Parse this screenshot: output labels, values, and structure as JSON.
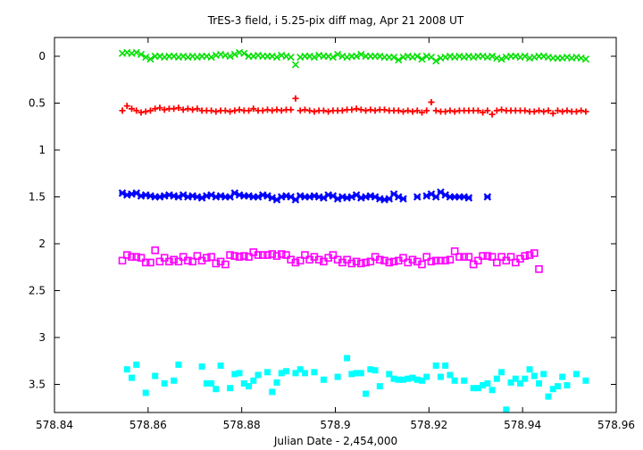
{
  "chart_data": {
    "type": "scatter",
    "title": "TrES-3 field, i 5.25-pix diff mag, Apr 21 2008 UT",
    "xlabel": "Julian Date - 2,454,000",
    "ylabel": "",
    "xlim": [
      578.84,
      578.96
    ],
    "ylim": [
      3.8,
      -0.2
    ],
    "y_reversed": true,
    "x_ticks": [
      "578.84",
      "578.86",
      "578.88",
      "578.9",
      "578.92",
      "578.94",
      "578.96"
    ],
    "y_ticks": [
      "0",
      "0.5",
      "1",
      "1.5",
      "2",
      "2.5",
      "3",
      "3.5"
    ],
    "grid": false,
    "series": [
      {
        "marker": "x",
        "color": "#00e000",
        "x": [
          578.8545,
          578.8555,
          578.8565,
          578.8575,
          578.8585,
          578.8595,
          578.8605,
          578.8615,
          578.8625,
          578.8635,
          578.8645,
          578.8655,
          578.8665,
          578.8675,
          578.8685,
          578.8695,
          578.8705,
          578.8715,
          578.8725,
          578.8735,
          578.8745,
          578.8755,
          578.8765,
          578.8775,
          578.8785,
          578.8795,
          578.8805,
          578.8815,
          578.8825,
          578.8835,
          578.8845,
          578.8855,
          578.8865,
          578.8875,
          578.8885,
          578.8895,
          578.8905,
          578.8915,
          578.8925,
          578.8935,
          578.8945,
          578.8955,
          578.8965,
          578.8975,
          578.8985,
          578.8995,
          578.9005,
          578.9015,
          578.9025,
          578.9035,
          578.9045,
          578.9055,
          578.9065,
          578.9075,
          578.9085,
          578.9095,
          578.9105,
          578.9115,
          578.9125,
          578.9135,
          578.9145,
          578.9155,
          578.9165,
          578.9175,
          578.9185,
          578.9195,
          578.9205,
          578.9215,
          578.9225,
          578.9235,
          578.9245,
          578.9255,
          578.9265,
          578.9275,
          578.9285,
          578.9295,
          578.9305,
          578.9315,
          578.9325,
          578.9335,
          578.9345,
          578.9355,
          578.9365,
          578.9375,
          578.9385,
          578.9395,
          578.9405,
          578.9415,
          578.9425,
          578.9435,
          578.9445,
          578.9455,
          578.9465,
          578.9475,
          578.9485,
          578.9495,
          578.9505,
          578.9515,
          578.9525,
          578.9535
        ],
        "y": [
          -0.03,
          -0.04,
          -0.03,
          -0.04,
          -0.02,
          0.01,
          0.03,
          0.0,
          0.0,
          0.01,
          0.0,
          0.0,
          0.01,
          0.0,
          0.01,
          0.0,
          0.01,
          0.0,
          0.0,
          0.01,
          -0.01,
          -0.02,
          -0.01,
          0.0,
          -0.02,
          -0.04,
          -0.03,
          0.0,
          0.0,
          -0.01,
          0.0,
          0.0,
          0.0,
          0.01,
          -0.01,
          0.0,
          0.01,
          0.09,
          0.01,
          0.0,
          0.0,
          0.01,
          -0.01,
          0.0,
          0.0,
          0.01,
          -0.02,
          0.0,
          0.01,
          0.0,
          0.0,
          -0.02,
          0.0,
          0.0,
          0.0,
          0.0,
          0.01,
          0.01,
          0.01,
          0.04,
          0.01,
          0.0,
          0.01,
          0.0,
          0.03,
          0.0,
          0.01,
          0.05,
          0.02,
          0.01,
          0.0,
          0.01,
          0.0,
          0.01,
          0.0,
          0.01,
          0.0,
          0.0,
          0.01,
          0.0,
          0.02,
          0.03,
          0.01,
          0.0,
          0.0,
          0.01,
          0.0,
          0.02,
          0.01,
          0.0,
          0.0,
          0.01,
          0.02,
          0.02,
          0.02,
          0.01,
          0.02,
          0.01,
          0.02,
          0.03
        ]
      },
      {
        "marker": "+",
        "color": "#ff0000",
        "x": [
          578.8545,
          578.8555,
          578.8565,
          578.8575,
          578.8585,
          578.8595,
          578.8605,
          578.8615,
          578.8625,
          578.8635,
          578.8645,
          578.8655,
          578.8665,
          578.8675,
          578.8685,
          578.8695,
          578.8705,
          578.8715,
          578.8725,
          578.8735,
          578.8745,
          578.8755,
          578.8765,
          578.8775,
          578.8785,
          578.8795,
          578.8805,
          578.8815,
          578.8825,
          578.8835,
          578.8845,
          578.8855,
          578.8865,
          578.8875,
          578.8885,
          578.8895,
          578.8905,
          578.8915,
          578.8925,
          578.8935,
          578.8945,
          578.8955,
          578.8965,
          578.8975,
          578.8985,
          578.8995,
          578.9005,
          578.9015,
          578.9025,
          578.9035,
          578.9045,
          578.9055,
          578.9065,
          578.9075,
          578.9085,
          578.9095,
          578.9105,
          578.9115,
          578.9125,
          578.9135,
          578.9145,
          578.9155,
          578.9165,
          578.9175,
          578.9185,
          578.9195,
          578.9205,
          578.9215,
          578.9225,
          578.9235,
          578.9245,
          578.9255,
          578.9265,
          578.9275,
          578.9285,
          578.9295,
          578.9305,
          578.9315,
          578.9325,
          578.9335,
          578.9345,
          578.9355,
          578.9365,
          578.9375,
          578.9385,
          578.9395,
          578.9405,
          578.9415,
          578.9425,
          578.9435,
          578.9445,
          578.9455,
          578.9465,
          578.9475,
          578.9485,
          578.9495,
          578.9505,
          578.9515,
          578.9525,
          578.9535
        ],
        "y": [
          0.58,
          0.53,
          0.56,
          0.58,
          0.6,
          0.59,
          0.58,
          0.56,
          0.55,
          0.57,
          0.56,
          0.56,
          0.55,
          0.57,
          0.56,
          0.57,
          0.56,
          0.58,
          0.58,
          0.58,
          0.59,
          0.58,
          0.58,
          0.59,
          0.58,
          0.57,
          0.58,
          0.58,
          0.56,
          0.58,
          0.58,
          0.57,
          0.58,
          0.57,
          0.58,
          0.57,
          0.57,
          0.45,
          0.58,
          0.57,
          0.58,
          0.59,
          0.58,
          0.58,
          0.59,
          0.58,
          0.58,
          0.58,
          0.57,
          0.57,
          0.56,
          0.57,
          0.58,
          0.57,
          0.58,
          0.57,
          0.57,
          0.58,
          0.58,
          0.58,
          0.59,
          0.58,
          0.59,
          0.58,
          0.6,
          0.58,
          0.49,
          0.58,
          0.59,
          0.59,
          0.58,
          0.59,
          0.58,
          0.58,
          0.58,
          0.58,
          0.58,
          0.6,
          0.58,
          0.62,
          0.58,
          0.57,
          0.58,
          0.58,
          0.58,
          0.58,
          0.58,
          0.59,
          0.59,
          0.58,
          0.59,
          0.58,
          0.61,
          0.58,
          0.59,
          0.58,
          0.59,
          0.59,
          0.58,
          0.59
        ]
      },
      {
        "marker": "filled-x",
        "color": "#0000ff",
        "x": [
          578.8545,
          578.8555,
          578.8565,
          578.8575,
          578.8585,
          578.8595,
          578.8605,
          578.8615,
          578.8625,
          578.8635,
          578.8645,
          578.8655,
          578.8665,
          578.8675,
          578.8685,
          578.8695,
          578.8705,
          578.8715,
          578.8725,
          578.8735,
          578.8745,
          578.8755,
          578.8765,
          578.8775,
          578.8785,
          578.8795,
          578.8805,
          578.8815,
          578.8825,
          578.8835,
          578.8845,
          578.8855,
          578.8865,
          578.8875,
          578.8885,
          578.8895,
          578.8905,
          578.8915,
          578.8925,
          578.8935,
          578.8945,
          578.8955,
          578.8965,
          578.8975,
          578.8985,
          578.8995,
          578.9005,
          578.9015,
          578.9025,
          578.9035,
          578.9045,
          578.9055,
          578.9065,
          578.9075,
          578.9085,
          578.9095,
          578.9105,
          578.9115,
          578.9125,
          578.9135,
          578.9145,
          578.9175,
          578.9195,
          578.9205,
          578.9215,
          578.9225,
          578.9235,
          578.9245,
          578.9255,
          578.9265,
          578.9275,
          578.9285,
          578.9325
        ],
        "y": [
          1.46,
          1.48,
          1.47,
          1.46,
          1.49,
          1.48,
          1.49,
          1.5,
          1.5,
          1.49,
          1.48,
          1.49,
          1.5,
          1.48,
          1.5,
          1.49,
          1.5,
          1.51,
          1.49,
          1.48,
          1.5,
          1.49,
          1.5,
          1.5,
          1.46,
          1.48,
          1.49,
          1.49,
          1.5,
          1.5,
          1.48,
          1.49,
          1.51,
          1.53,
          1.5,
          1.49,
          1.5,
          1.53,
          1.49,
          1.5,
          1.5,
          1.49,
          1.5,
          1.51,
          1.48,
          1.49,
          1.52,
          1.5,
          1.51,
          1.5,
          1.48,
          1.51,
          1.5,
          1.49,
          1.5,
          1.52,
          1.53,
          1.52,
          1.47,
          1.5,
          1.52,
          1.5,
          1.49,
          1.47,
          1.5,
          1.45,
          1.48,
          1.5,
          1.5,
          1.5,
          1.5,
          1.51,
          1.5
        ]
      },
      {
        "marker": "open-square",
        "color": "#ff00ff",
        "x": [
          578.8545,
          578.8555,
          578.8565,
          578.8575,
          578.8585,
          578.8595,
          578.8605,
          578.8615,
          578.8625,
          578.8635,
          578.8645,
          578.8655,
          578.8665,
          578.8675,
          578.8685,
          578.8695,
          578.8705,
          578.8715,
          578.8725,
          578.8735,
          578.8745,
          578.8755,
          578.8765,
          578.8775,
          578.8785,
          578.8795,
          578.8805,
          578.8815,
          578.8825,
          578.8835,
          578.8845,
          578.8855,
          578.8865,
          578.8875,
          578.8885,
          578.8895,
          578.8905,
          578.8915,
          578.8925,
          578.8935,
          578.8945,
          578.8955,
          578.8965,
          578.8975,
          578.8985,
          578.8995,
          578.9005,
          578.9015,
          578.9025,
          578.9035,
          578.9045,
          578.9055,
          578.9065,
          578.9075,
          578.9085,
          578.9095,
          578.9105,
          578.9115,
          578.9125,
          578.9135,
          578.9145,
          578.9155,
          578.9165,
          578.9175,
          578.9185,
          578.9195,
          578.9205,
          578.9215,
          578.9225,
          578.9235,
          578.9245,
          578.9255,
          578.9265,
          578.9275,
          578.9285,
          578.9295,
          578.9305,
          578.9315,
          578.9325,
          578.9335,
          578.9345,
          578.9355,
          578.9365,
          578.9375,
          578.9385,
          578.9395,
          578.9405,
          578.9415,
          578.9425,
          578.9435
        ],
        "y": [
          2.18,
          2.12,
          2.14,
          2.14,
          2.15,
          2.2,
          2.2,
          2.07,
          2.19,
          2.15,
          2.19,
          2.17,
          2.19,
          2.14,
          2.18,
          2.19,
          2.13,
          2.18,
          2.15,
          2.14,
          2.21,
          2.19,
          2.22,
          2.12,
          2.13,
          2.14,
          2.13,
          2.14,
          2.09,
          2.12,
          2.12,
          2.12,
          2.11,
          2.13,
          2.11,
          2.12,
          2.17,
          2.2,
          2.18,
          2.12,
          2.17,
          2.14,
          2.17,
          2.19,
          2.15,
          2.12,
          2.17,
          2.2,
          2.17,
          2.21,
          2.19,
          2.21,
          2.2,
          2.19,
          2.14,
          2.17,
          2.18,
          2.2,
          2.19,
          2.18,
          2.15,
          2.2,
          2.17,
          2.19,
          2.22,
          2.14,
          2.19,
          2.18,
          2.18,
          2.18,
          2.17,
          2.08,
          2.14,
          2.14,
          2.14,
          2.22,
          2.18,
          2.13,
          2.13,
          2.14,
          2.2,
          2.14,
          2.18,
          2.14,
          2.2,
          2.16,
          2.13,
          2.12,
          2.1,
          2.27
        ]
      },
      {
        "marker": "filled-square",
        "color": "#00ffff",
        "x": [
          578.8555,
          578.8565,
          578.8575,
          578.8595,
          578.8615,
          578.8635,
          578.8655,
          578.8665,
          578.8715,
          578.8725,
          578.8735,
          578.8745,
          578.8755,
          578.8775,
          578.8785,
          578.8795,
          578.8805,
          578.8815,
          578.8825,
          578.8835,
          578.8855,
          578.8865,
          578.8875,
          578.8885,
          578.8895,
          578.8915,
          578.8925,
          578.8935,
          578.8955,
          578.8975,
          578.9005,
          578.9025,
          578.9035,
          578.9045,
          578.9055,
          578.9065,
          578.9075,
          578.9085,
          578.9095,
          578.9115,
          578.9125,
          578.9135,
          578.9145,
          578.9155,
          578.9165,
          578.9175,
          578.9185,
          578.9195,
          578.9215,
          578.9225,
          578.9235,
          578.9245,
          578.9255,
          578.9275,
          578.9295,
          578.9305,
          578.9315,
          578.9325,
          578.9335,
          578.9345,
          578.9355,
          578.9365,
          578.9375,
          578.9385,
          578.9395,
          578.9405,
          578.9415,
          578.9425,
          578.9435,
          578.9445,
          578.9455,
          578.9465,
          578.9475,
          578.9485,
          578.9495,
          578.9515,
          578.9535
        ],
        "y": [
          3.34,
          3.43,
          3.29,
          3.59,
          3.41,
          3.49,
          3.46,
          3.29,
          3.31,
          3.49,
          3.49,
          3.55,
          3.3,
          3.54,
          3.39,
          3.38,
          3.49,
          3.52,
          3.46,
          3.4,
          3.37,
          3.58,
          3.48,
          3.38,
          3.36,
          3.38,
          3.34,
          3.38,
          3.37,
          3.45,
          3.42,
          3.22,
          3.39,
          3.38,
          3.38,
          3.6,
          3.34,
          3.35,
          3.52,
          3.39,
          3.44,
          3.45,
          3.45,
          3.44,
          3.43,
          3.45,
          3.46,
          3.42,
          3.3,
          3.42,
          3.3,
          3.4,
          3.46,
          3.46,
          3.54,
          3.54,
          3.51,
          3.49,
          3.56,
          3.44,
          3.37,
          3.77,
          3.48,
          3.44,
          3.49,
          3.44,
          3.34,
          3.41,
          3.49,
          3.39,
          3.63,
          3.55,
          3.52,
          3.42,
          3.51,
          3.39,
          3.46
        ]
      }
    ]
  }
}
